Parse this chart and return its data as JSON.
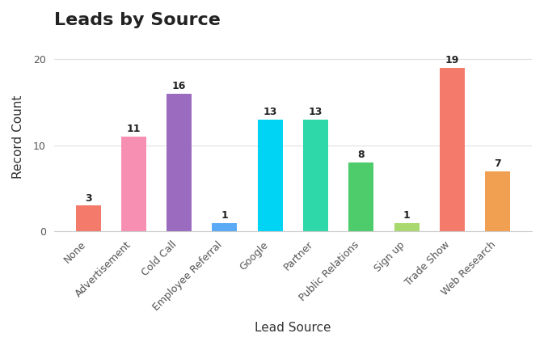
{
  "title": "Leads by Source",
  "xlabel": "Lead Source",
  "ylabel": "Record Count",
  "categories": [
    "None",
    "Advertisement",
    "Cold Call",
    "Employee Referral",
    "Google",
    "Partner",
    "Public Relations",
    "Sign up",
    "Trade Show",
    "Web Research"
  ],
  "values": [
    3,
    11,
    16,
    1,
    13,
    13,
    8,
    1,
    19,
    7
  ],
  "bar_colors": [
    "#f47b6b",
    "#f78fb3",
    "#9b6bbf",
    "#5baaf5",
    "#00d4f5",
    "#2ed8a8",
    "#4ecb6b",
    "#a8d86e",
    "#f47b6b",
    "#f0a050"
  ],
  "ylim": [
    0,
    22
  ],
  "yticks": [
    0,
    10,
    20
  ],
  "background_color": "#ffffff",
  "plot_bg_color": "#ffffff",
  "grid_color": "#e0e0e0",
  "title_fontsize": 16,
  "label_fontsize": 11,
  "tick_fontsize": 9,
  "bar_label_fontsize": 9
}
